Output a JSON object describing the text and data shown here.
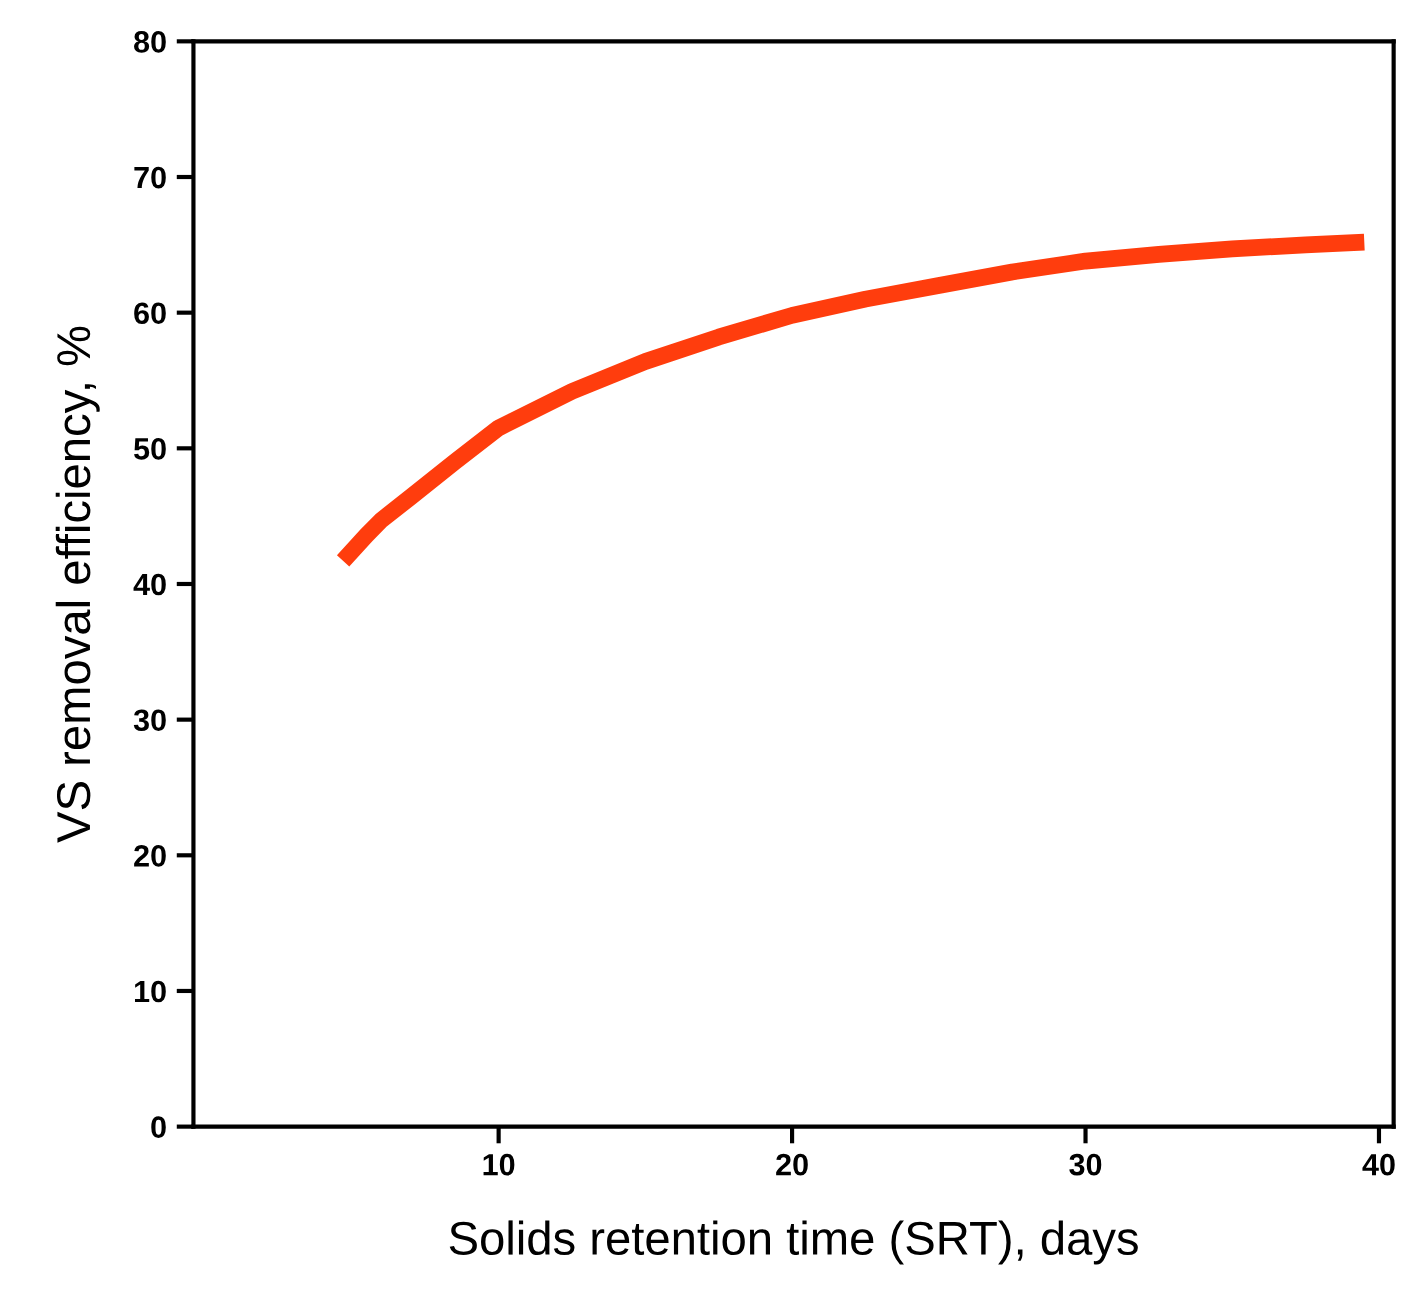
{
  "chart_data": {
    "type": "line",
    "xlabel": "Solids retention time (SRT), days",
    "ylabel": "VS removal efficiency, %",
    "xlim": [
      -0.4,
      40.5
    ],
    "xticks": [
      10,
      20,
      30,
      40
    ],
    "ylim": [
      0,
      80
    ],
    "yticks": [
      0,
      10,
      20,
      30,
      40,
      50,
      60,
      70,
      80
    ],
    "grid": false,
    "line_style": "solid",
    "marker": "none",
    "series": [
      {
        "color": "#ff3d0d",
        "x": [
          4.7,
          5.5,
          6.0,
          7.0,
          8.5,
          10,
          12.5,
          15,
          17.5,
          20,
          22.5,
          25,
          27.5,
          30,
          32.5,
          35,
          37.5,
          39.5
        ],
        "values": [
          41.7,
          43.6,
          44.7,
          46.4,
          49.0,
          51.5,
          54.2,
          56.4,
          58.2,
          59.8,
          61.0,
          62.0,
          63.0,
          63.8,
          64.3,
          64.7,
          65.0,
          65.2
        ]
      }
    ]
  }
}
